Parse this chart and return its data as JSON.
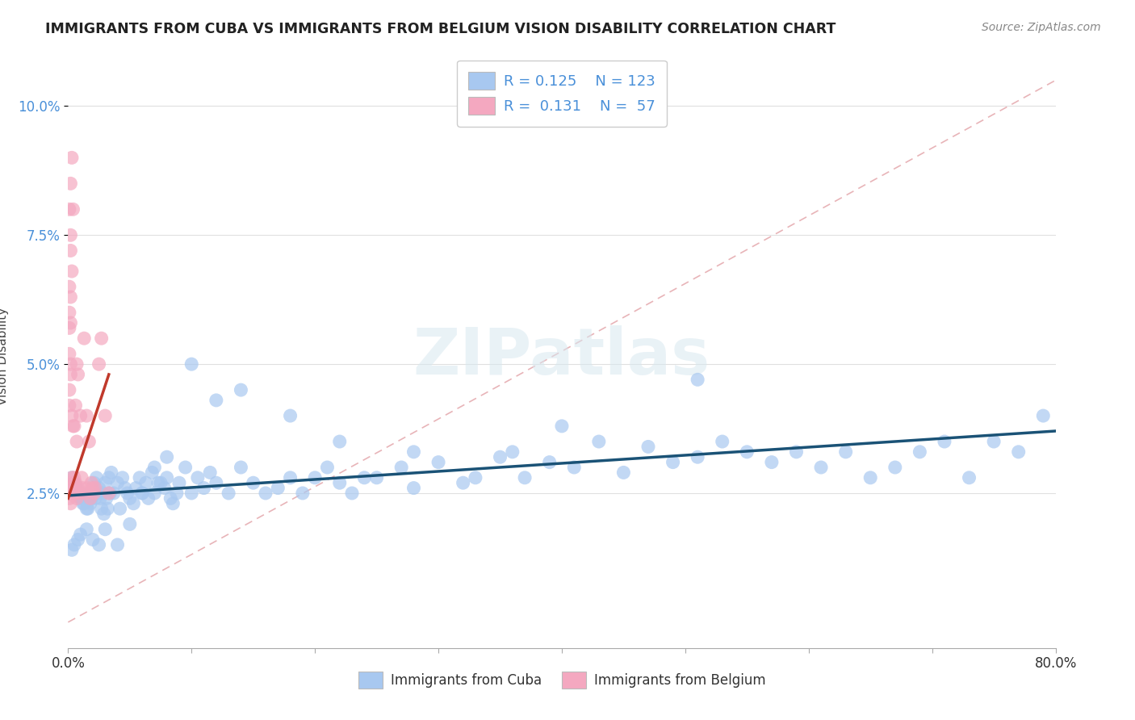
{
  "title": "IMMIGRANTS FROM CUBA VS IMMIGRANTS FROM BELGIUM VISION DISABILITY CORRELATION CHART",
  "source": "Source: ZipAtlas.com",
  "ylabel": "Vision Disability",
  "yticks": [
    "2.5%",
    "5.0%",
    "7.5%",
    "10.0%"
  ],
  "ytick_vals": [
    0.025,
    0.05,
    0.075,
    0.1
  ],
  "xlim": [
    0.0,
    0.8
  ],
  "ylim": [
    -0.005,
    0.108
  ],
  "cuba_R": "0.125",
  "cuba_N": "123",
  "belgium_R": "0.131",
  "belgium_N": "57",
  "cuba_color": "#a8c8f0",
  "cuba_line_color": "#1a5276",
  "belgium_color": "#f4a8c0",
  "belgium_line_color": "#c0392b",
  "diag_color": "#e8b4b8",
  "watermark": "ZIPatlas",
  "grid_color": "#e0e0e0",
  "title_color": "#222222",
  "label_color": "#4a90d9",
  "cuba_x": [
    0.003,
    0.005,
    0.007,
    0.008,
    0.009,
    0.01,
    0.011,
    0.012,
    0.013,
    0.014,
    0.015,
    0.016,
    0.017,
    0.018,
    0.019,
    0.02,
    0.021,
    0.022,
    0.023,
    0.024,
    0.025,
    0.026,
    0.027,
    0.028,
    0.029,
    0.03,
    0.031,
    0.032,
    0.033,
    0.034,
    0.035,
    0.037,
    0.04,
    0.042,
    0.044,
    0.046,
    0.048,
    0.05,
    0.053,
    0.055,
    0.058,
    0.06,
    0.063,
    0.065,
    0.068,
    0.07,
    0.073,
    0.075,
    0.078,
    0.08,
    0.083,
    0.085,
    0.088,
    0.09,
    0.095,
    0.1,
    0.105,
    0.11,
    0.115,
    0.12,
    0.13,
    0.14,
    0.15,
    0.16,
    0.17,
    0.18,
    0.19,
    0.2,
    0.21,
    0.22,
    0.23,
    0.24,
    0.25,
    0.27,
    0.28,
    0.3,
    0.32,
    0.33,
    0.35,
    0.37,
    0.39,
    0.41,
    0.43,
    0.45,
    0.47,
    0.49,
    0.51,
    0.53,
    0.55,
    0.57,
    0.59,
    0.61,
    0.63,
    0.65,
    0.67,
    0.69,
    0.71,
    0.73,
    0.75,
    0.77,
    0.79,
    0.51,
    0.4,
    0.36,
    0.28,
    0.22,
    0.18,
    0.14,
    0.12,
    0.1,
    0.08,
    0.07,
    0.06,
    0.05,
    0.04,
    0.03,
    0.025,
    0.02,
    0.015,
    0.01,
    0.008,
    0.005,
    0.003
  ],
  "cuba_y": [
    0.028,
    0.027,
    0.026,
    0.025,
    0.025,
    0.024,
    0.024,
    0.023,
    0.023,
    0.024,
    0.022,
    0.022,
    0.025,
    0.023,
    0.024,
    0.025,
    0.027,
    0.024,
    0.028,
    0.025,
    0.026,
    0.024,
    0.022,
    0.025,
    0.021,
    0.027,
    0.024,
    0.022,
    0.028,
    0.025,
    0.029,
    0.025,
    0.027,
    0.022,
    0.028,
    0.026,
    0.025,
    0.024,
    0.023,
    0.026,
    0.028,
    0.025,
    0.027,
    0.024,
    0.029,
    0.025,
    0.027,
    0.027,
    0.026,
    0.028,
    0.024,
    0.023,
    0.025,
    0.027,
    0.03,
    0.025,
    0.028,
    0.026,
    0.029,
    0.027,
    0.025,
    0.03,
    0.027,
    0.025,
    0.026,
    0.028,
    0.025,
    0.028,
    0.03,
    0.027,
    0.025,
    0.028,
    0.028,
    0.03,
    0.026,
    0.031,
    0.027,
    0.028,
    0.032,
    0.028,
    0.031,
    0.03,
    0.035,
    0.029,
    0.034,
    0.031,
    0.032,
    0.035,
    0.033,
    0.031,
    0.033,
    0.03,
    0.033,
    0.028,
    0.03,
    0.033,
    0.035,
    0.028,
    0.035,
    0.033,
    0.04,
    0.047,
    0.038,
    0.033,
    0.033,
    0.035,
    0.04,
    0.045,
    0.043,
    0.05,
    0.032,
    0.03,
    0.025,
    0.019,
    0.015,
    0.018,
    0.015,
    0.016,
    0.018,
    0.017,
    0.016,
    0.015,
    0.014
  ],
  "belgium_x": [
    0.0,
    0.001,
    0.001,
    0.002,
    0.002,
    0.003,
    0.003,
    0.004,
    0.004,
    0.005,
    0.005,
    0.006,
    0.006,
    0.007,
    0.007,
    0.008,
    0.009,
    0.01,
    0.011,
    0.012,
    0.013,
    0.014,
    0.015,
    0.016,
    0.017,
    0.018,
    0.019,
    0.02,
    0.021,
    0.022,
    0.025,
    0.027,
    0.03,
    0.033,
    0.003,
    0.004,
    0.005,
    0.006,
    0.007,
    0.008,
    0.002,
    0.003,
    0.004,
    0.002,
    0.001,
    0.003,
    0.002,
    0.001,
    0.002,
    0.001,
    0.001,
    0.002,
    0.001,
    0.002,
    0.001,
    0.002,
    0.001
  ],
  "belgium_y": [
    0.025,
    0.026,
    0.024,
    0.025,
    0.023,
    0.028,
    0.026,
    0.027,
    0.025,
    0.028,
    0.026,
    0.025,
    0.027,
    0.024,
    0.035,
    0.026,
    0.025,
    0.04,
    0.028,
    0.026,
    0.055,
    0.025,
    0.04,
    0.026,
    0.035,
    0.024,
    0.027,
    0.026,
    0.025,
    0.026,
    0.05,
    0.055,
    0.04,
    0.025,
    0.04,
    0.038,
    0.038,
    0.042,
    0.05,
    0.048,
    0.085,
    0.09,
    0.08,
    0.075,
    0.08,
    0.068,
    0.072,
    0.06,
    0.063,
    0.065,
    0.057,
    0.058,
    0.052,
    0.05,
    0.045,
    0.048,
    0.042
  ],
  "belgium_trend_x": [
    0.0,
    0.033
  ],
  "belgium_trend_y": [
    0.024,
    0.048
  ]
}
